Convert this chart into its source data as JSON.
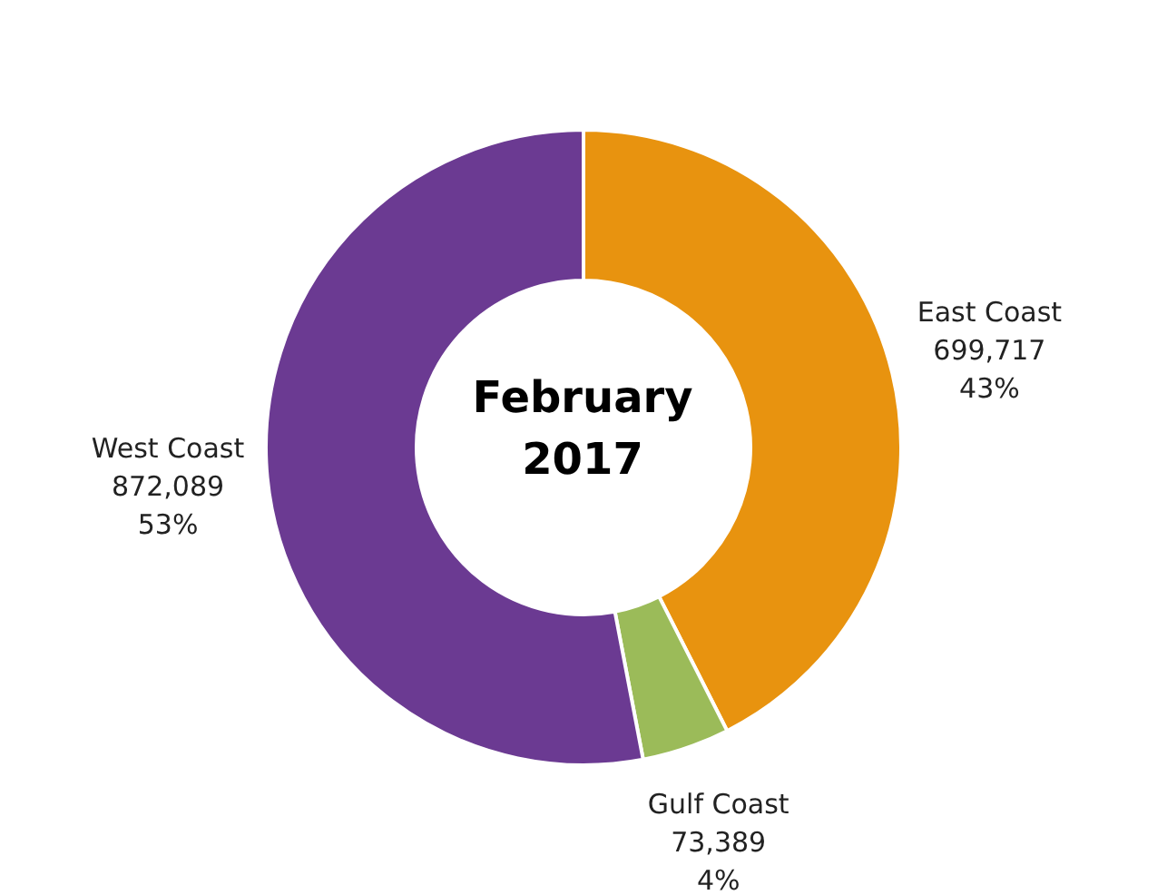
{
  "chart_data": {
    "type": "donut",
    "title": "February 2017",
    "categories": [
      "East Coast",
      "Gulf Coast",
      "West Coast"
    ],
    "values": [
      699717,
      73389,
      872089
    ],
    "colors": [
      "#e8930f",
      "#9bbb59",
      "#6b3a92"
    ],
    "value_labels": [
      "699,717\n43%",
      "73,389\n4%",
      "872,089\n53%"
    ]
  }
}
